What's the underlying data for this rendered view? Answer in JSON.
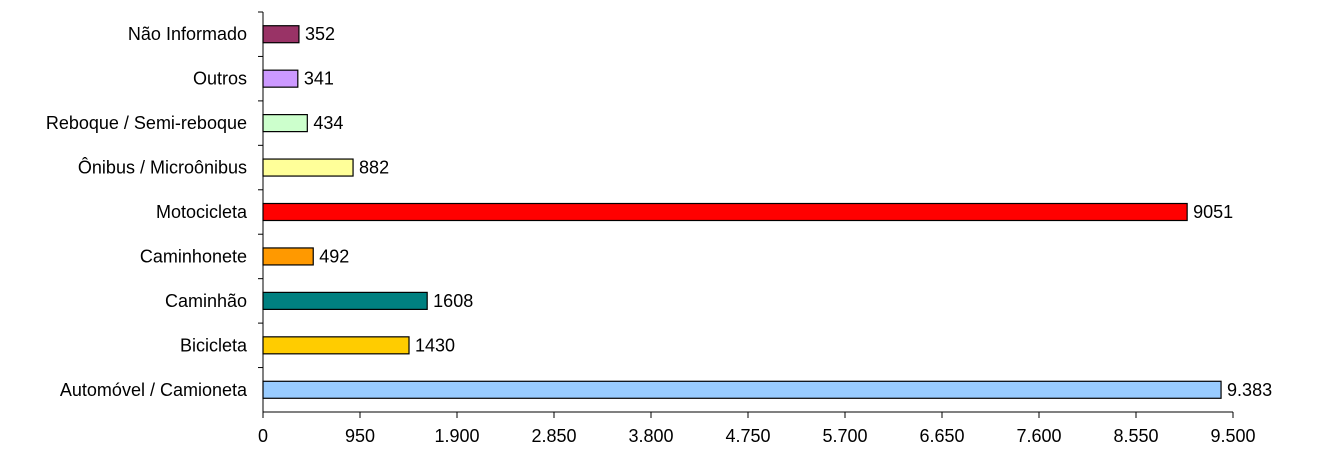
{
  "chart_data": {
    "type": "bar",
    "orientation": "horizontal",
    "title": "",
    "xlabel": "",
    "ylabel": "",
    "xlim": [
      0,
      9500
    ],
    "grid": false,
    "categories": [
      "Automóvel / Camioneta",
      "Bicicleta",
      "Caminhão",
      "Caminhonete",
      "Motocicleta",
      "Ônibus / Microônibus",
      "Reboque / Semi-reboque",
      "Outros",
      "Não Informado"
    ],
    "values": [
      9383,
      1430,
      1608,
      492,
      9051,
      882,
      434,
      341,
      352
    ],
    "value_labels": [
      "9.383",
      "1430",
      "1608",
      "492",
      "9051",
      "882",
      "434",
      "341",
      "352"
    ],
    "colors": [
      "#99CCFF",
      "#FFCC00",
      "#008080",
      "#FF9900",
      "#FF0000",
      "#FFFF99",
      "#CCFFCC",
      "#CC99FF",
      "#993366"
    ],
    "x_ticks": [
      0,
      950,
      1900,
      2850,
      3800,
      4750,
      5700,
      6650,
      7600,
      8550,
      9500
    ],
    "x_tick_labels": [
      "0",
      "950",
      "1.900",
      "2.850",
      "3.800",
      "4.750",
      "5.700",
      "6.650",
      "7.600",
      "8.550",
      "9.500"
    ]
  }
}
